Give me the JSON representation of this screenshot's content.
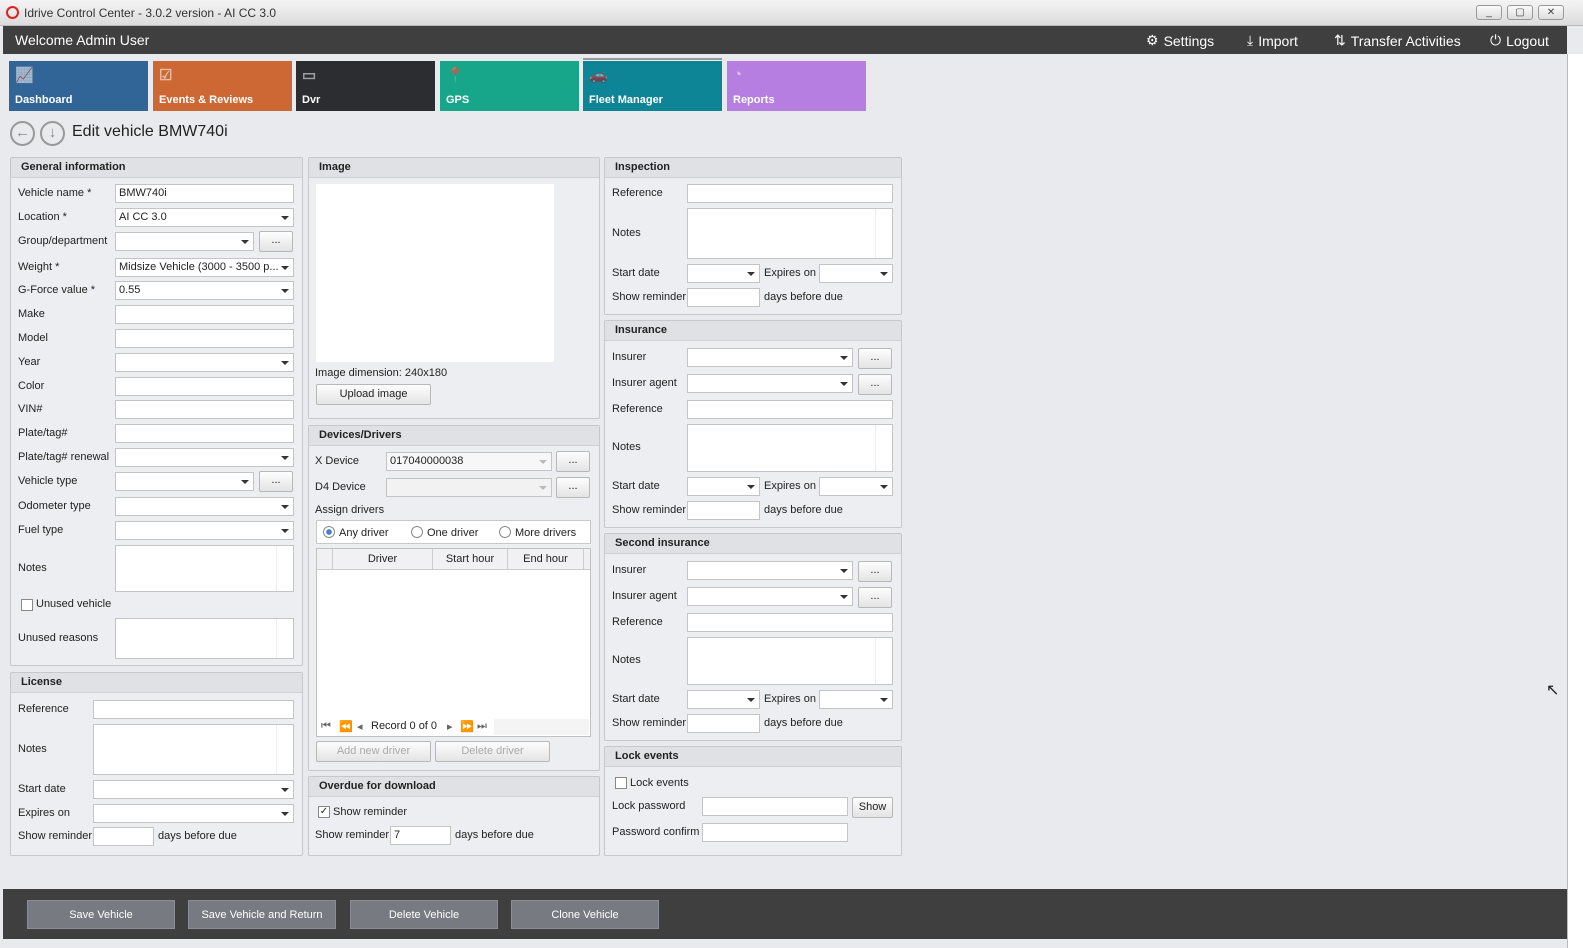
{
  "window": {
    "title": "Idrive Control Center - 3.0.2 version - AI CC 3.0",
    "controls": [
      "_",
      "▢",
      "✕"
    ]
  },
  "header": {
    "welcome": "Welcome Admin User",
    "nav": [
      {
        "label": "Settings",
        "icon": "gears-icon"
      },
      {
        "label": "Import",
        "icon": "download-icon"
      },
      {
        "label": "Transfer Activities",
        "icon": "transfer-icon"
      },
      {
        "label": "Logout",
        "icon": "power-icon"
      }
    ]
  },
  "tiles": [
    {
      "label": "Dashboard",
      "color": "#316597",
      "icon": "chart-icon"
    },
    {
      "label": "Events & Reviews",
      "color": "#cd6733",
      "icon": "clipboard-icon"
    },
    {
      "label": "Dvr",
      "color": "#2b2d31",
      "icon": "dvr-icon"
    },
    {
      "label": "GPS",
      "color": "#18a68a",
      "icon": "pin-icon"
    },
    {
      "label": "Fleet Manager",
      "color": "#0e8497",
      "icon": "cars-icon"
    },
    {
      "label": "Reports",
      "color": "#b57ee0",
      "icon": "pie-icon"
    }
  ],
  "page": {
    "title": "Edit vehicle BMW740i"
  },
  "general": {
    "title": "General information",
    "vehicle_name_label": "Vehicle name *",
    "vehicle_name": "BMW740i",
    "location_label": "Location *",
    "location": "AI CC 3.0",
    "group_label": "Group/department",
    "weight_label": "Weight *",
    "weight": "Midsize Vehicle (3000 - 3500 p...",
    "gforce_label": "G-Force value *",
    "gforce": "0.55",
    "make_label": "Make",
    "model_label": "Model",
    "year_label": "Year",
    "color_label": "Color",
    "vin_label": "VIN#",
    "plate_label": "Plate/tag#",
    "plate_renewal_label": "Plate/tag# renewal",
    "vehicle_type_label": "Vehicle type",
    "odometer_label": "Odometer type",
    "fuel_label": "Fuel type",
    "notes_label": "Notes",
    "unused_label": "Unused vehicle",
    "unused_reasons_label": "Unused reasons"
  },
  "license": {
    "title": "License",
    "reference_label": "Reference",
    "notes_label": "Notes",
    "start_label": "Start date",
    "expires_label": "Expires on",
    "reminder_label": "Show reminder",
    "days_label": "days before due"
  },
  "image": {
    "title": "Image",
    "dimension_label": "Image dimension:",
    "dimension": "240x180",
    "upload": "Upload image"
  },
  "devices": {
    "title": "Devices/Drivers",
    "x_label": "X Device",
    "x_value": "017040000038",
    "d4_label": "D4 Device",
    "assign_label": "Assign drivers",
    "options": [
      "Any driver",
      "One driver",
      "More drivers"
    ],
    "selected": "Any driver",
    "columns": [
      "Driver",
      "Start hour",
      "End hour"
    ],
    "record": "Record 0 of 0",
    "add": "Add new driver",
    "delete": "Delete driver"
  },
  "overdue": {
    "title": "Overdue for download",
    "show_label": "Show reminder",
    "show_checked": true,
    "reminder_label": "Show reminder",
    "reminder_value": "7",
    "days_label": "days before due"
  },
  "inspection": {
    "title": "Inspection",
    "reference_label": "Reference",
    "notes_label": "Notes",
    "start_label": "Start date",
    "expires_label": "Expires on",
    "reminder_label": "Show reminder",
    "days_label": "days before due"
  },
  "insurance": {
    "title": "Insurance",
    "insurer_label": "Insurer",
    "agent_label": "Insurer agent",
    "reference_label": "Reference",
    "notes_label": "Notes",
    "start_label": "Start date",
    "expires_label": "Expires on",
    "reminder_label": "Show reminder",
    "days_label": "days before due"
  },
  "second_insurance": {
    "title": "Second insurance",
    "insurer_label": "Insurer",
    "agent_label": "Insurer agent",
    "reference_label": "Reference",
    "notes_label": "Notes",
    "start_label": "Start date",
    "expires_label": "Expires on",
    "reminder_label": "Show reminder",
    "days_label": "days before due"
  },
  "lock": {
    "title": "Lock events",
    "lock_label": "Lock events",
    "password_label": "Lock password",
    "confirm_label": "Password confirm",
    "show": "Show"
  },
  "footer": {
    "buttons": [
      "Save Vehicle",
      "Save Vehicle and Return",
      "Delete Vehicle",
      "Clone Vehicle"
    ]
  },
  "dots": "..."
}
